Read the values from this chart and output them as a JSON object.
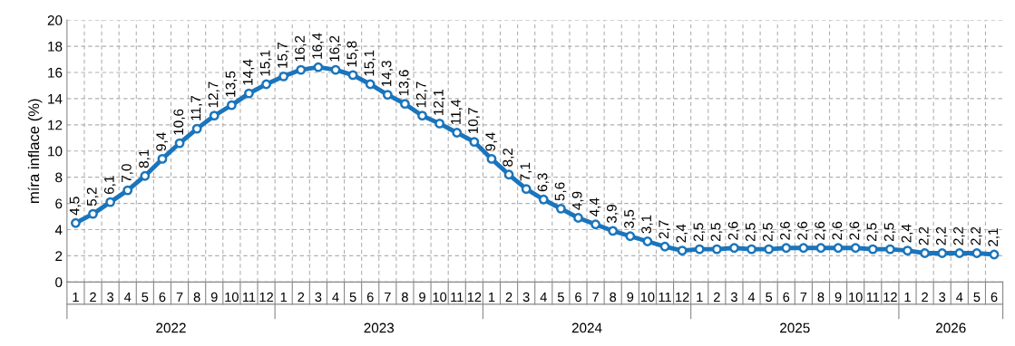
{
  "chart_data": {
    "type": "line",
    "ylabel": "míra inflace (%)",
    "categories": [
      "1",
      "2",
      "3",
      "4",
      "5",
      "6",
      "7",
      "8",
      "9",
      "10",
      "11",
      "12",
      "1",
      "2",
      "3",
      "4",
      "5",
      "6",
      "7",
      "8",
      "9",
      "10",
      "11",
      "12",
      "1",
      "2",
      "3",
      "4",
      "5",
      "6",
      "7",
      "8",
      "9",
      "10",
      "11",
      "12",
      "1",
      "2",
      "3",
      "4",
      "5",
      "6",
      "7",
      "8",
      "9",
      "10",
      "11",
      "12",
      "1",
      "2",
      "3",
      "4",
      "5",
      "6"
    ],
    "annotations": [
      "2022",
      "2023",
      "2024",
      "2025",
      "2026"
    ],
    "series": [
      {
        "color": "#1a75bc",
        "values": [
          4.5,
          5.2,
          6.1,
          7.0,
          8.1,
          9.4,
          10.6,
          11.7,
          12.7,
          13.5,
          14.4,
          15.1,
          15.7,
          16.2,
          16.4,
          16.2,
          15.8,
          15.1,
          14.3,
          13.6,
          12.7,
          12.1,
          11.4,
          10.7,
          9.4,
          8.2,
          7.1,
          6.3,
          5.6,
          4.9,
          4.4,
          3.9,
          3.5,
          3.1,
          2.7,
          2.4,
          2.5,
          2.5,
          2.6,
          2.5,
          2.5,
          2.6,
          2.6,
          2.6,
          2.6,
          2.6,
          2.5,
          2.5,
          2.4,
          2.2,
          2.2,
          2.2,
          2.2,
          2.1
        ],
        "value_labels": [
          "4,5",
          "5,2",
          "6,1",
          "7,0",
          "8,1",
          "9,4",
          "10,6",
          "11,7",
          "12,7",
          "13,5",
          "14,4",
          "15,1",
          "15,7",
          "16,2",
          "16,4",
          "16,2",
          "15,8",
          "15,1",
          "14,3",
          "13,6",
          "12,7",
          "12,1",
          "11,4",
          "10,7",
          "9,4",
          "8,2",
          "7,1",
          "6,3",
          "5,6",
          "4,9",
          "4,4",
          "3,9",
          "3,5",
          "3,1",
          "2,7",
          "2,4",
          "2,5",
          "2,5",
          "2,6",
          "2,5",
          "2,5",
          "2,6",
          "2,6",
          "2,6",
          "2,6",
          "2,6",
          "2,5",
          "2,5",
          "2,4",
          "2,2",
          "2,2",
          "2,2",
          "2,2",
          "2,1"
        ]
      }
    ],
    "ylim": [
      0,
      20
    ],
    "yticks": [
      0,
      2,
      4,
      6,
      8,
      10,
      12,
      14,
      16,
      18,
      20
    ],
    "grid": true,
    "marker": "circle",
    "line_style": "solid"
  }
}
